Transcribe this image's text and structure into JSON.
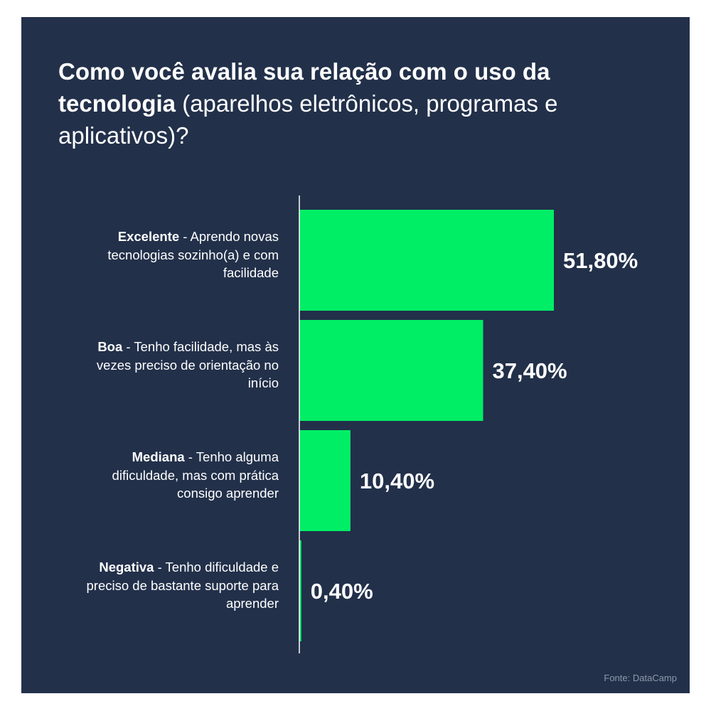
{
  "header": {
    "title_bold": "Como você avalia sua relação com o uso da tecnologia",
    "title_regular": " (aparelhos eletrônicos, programas e aplicativos)?"
  },
  "chart_data": {
    "type": "bar",
    "orientation": "horizontal",
    "categories": [
      {
        "bold": "Excelente",
        "rest": " - Aprendo novas tecnologias sozinho(a) e com facilidade"
      },
      {
        "bold": "Boa",
        "rest": " - Tenho facilidade, mas às vezes preciso de orientação no início"
      },
      {
        "bold": "Mediana",
        "rest": " - Tenho alguma dificuldade, mas com prática consigo aprender"
      },
      {
        "bold": "Negativa",
        "rest": " - Tenho dificuldade e preciso de bastante suporte para aprender"
      }
    ],
    "values": [
      51.8,
      37.4,
      10.4,
      0.4
    ],
    "value_labels": [
      "51,80%",
      "37,40%",
      "10,40%",
      "0,40%"
    ],
    "bar_color": "#00ee66",
    "grid": false,
    "legend": "none"
  },
  "footer": {
    "source": "Fonte: DataCamp"
  },
  "colors": {
    "background": "#22304a",
    "bar": "#00ee66",
    "text": "#ffffff",
    "accent_blue": "#4db8ff",
    "accent_purple": "#7c3aed",
    "accent_green": "#00ee66",
    "accent_orange": "#ff9a1f"
  }
}
